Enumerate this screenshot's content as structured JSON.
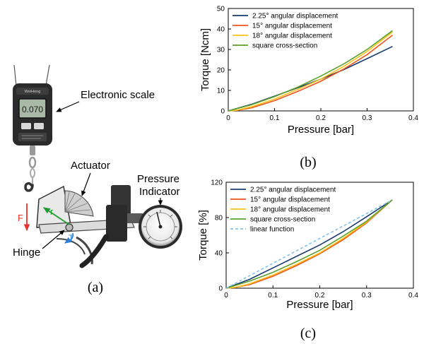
{
  "photo": {
    "scale_label": "Electronic scale",
    "actuator_label": "Actuator",
    "pressure_label_line1": "Pressure",
    "pressure_label_line2": "Indicator",
    "hinge_label": "Hinge",
    "force_symbol": "F",
    "radius_symbol": "r",
    "torque_symbol": "T",
    "scale_display": "0.070",
    "scale_brand": "WeiHeng",
    "colors": {
      "force": "#e8312a",
      "radius": "#1e9a2e",
      "torque": "#2a7fd4"
    }
  },
  "panel_labels": {
    "a": "(a)",
    "b": "(b)",
    "c": "(c)"
  },
  "chart_data": [
    {
      "type": "line",
      "xlabel": "Pressure [bar]",
      "ylabel": "Torque [Ncm]",
      "xlim": [
        0,
        0.4
      ],
      "ylim": [
        0,
        50
      ],
      "xticks": [
        "0",
        "0.1",
        "0.2",
        "0.3",
        "0.4"
      ],
      "yticks": [
        "0",
        "10",
        "20",
        "30",
        "40",
        "50"
      ],
      "legend_position": "top-left",
      "grid": false,
      "series": [
        {
          "name": "2.25° angular displacement",
          "color": "#1a3a6e",
          "x": [
            0,
            0.05,
            0.1,
            0.15,
            0.2,
            0.25,
            0.3,
            0.355
          ],
          "y": [
            0,
            3.2,
            7.2,
            11.3,
            15.5,
            20.2,
            25.5,
            31.5
          ]
        },
        {
          "name": "15° angular displacement",
          "color": "#f0531c",
          "x": [
            0,
            0.02,
            0.05,
            0.1,
            0.15,
            0.2,
            0.25,
            0.3,
            0.355
          ],
          "y": [
            0,
            0.3,
            1.5,
            5,
            9.5,
            14.5,
            20.5,
            27.5,
            37
          ]
        },
        {
          "name": "18° angular displacement",
          "color": "#f9c21a",
          "x": [
            0,
            0.02,
            0.05,
            0.1,
            0.15,
            0.2,
            0.25,
            0.3,
            0.355
          ],
          "y": [
            0,
            0.4,
            2,
            5.8,
            10.5,
            15.5,
            21.8,
            29,
            38.5
          ]
        },
        {
          "name": "square cross-section",
          "color": "#5aa02c",
          "x": [
            0,
            0.05,
            0.1,
            0.15,
            0.2,
            0.25,
            0.3,
            0.355
          ],
          "y": [
            0,
            3,
            7,
            11.6,
            17,
            23,
            30,
            39.2
          ]
        }
      ]
    },
    {
      "type": "line",
      "xlabel": "Pressure [bar]",
      "ylabel": "Torque [%]",
      "xlim": [
        0,
        0.4
      ],
      "ylim": [
        0,
        120
      ],
      "xticks": [
        "0",
        "0.1",
        "0.2",
        "0.3",
        "0.4"
      ],
      "yticks": [
        "0",
        "40",
        "80",
        "120"
      ],
      "legend_position": "top-left",
      "grid": false,
      "series": [
        {
          "name": "2.25° angular displacement",
          "color": "#1a3a6e",
          "x": [
            0,
            0.05,
            0.1,
            0.15,
            0.2,
            0.25,
            0.3,
            0.355
          ],
          "y": [
            0,
            10,
            23,
            36,
            49,
            64,
            81,
            100
          ]
        },
        {
          "name": "15° angular displacement",
          "color": "#f0531c",
          "x": [
            0,
            0.02,
            0.05,
            0.1,
            0.15,
            0.2,
            0.25,
            0.3,
            0.355
          ],
          "y": [
            0,
            1,
            4,
            13.5,
            25.5,
            39,
            55,
            74,
            100
          ]
        },
        {
          "name": "18° angular displacement",
          "color": "#f9c21a",
          "x": [
            0,
            0.02,
            0.05,
            0.1,
            0.15,
            0.2,
            0.25,
            0.3,
            0.355
          ],
          "y": [
            0,
            1,
            5,
            15,
            27,
            40,
            56.5,
            75,
            100
          ]
        },
        {
          "name": "square cross-section",
          "color": "#5aa02c",
          "x": [
            0,
            0.05,
            0.1,
            0.15,
            0.2,
            0.25,
            0.3,
            0.355
          ],
          "y": [
            0,
            8,
            18,
            30,
            43,
            59,
            76,
            100
          ]
        },
        {
          "name": "linear function",
          "color": "#7fc4ee",
          "dashed": true,
          "x": [
            0,
            0.355
          ],
          "y": [
            0,
            100
          ]
        }
      ]
    }
  ]
}
